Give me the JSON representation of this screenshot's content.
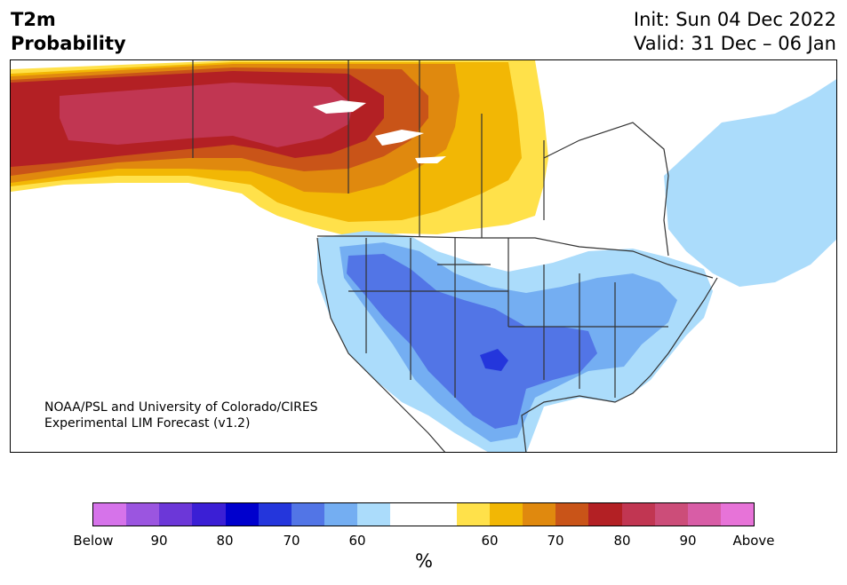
{
  "header": {
    "variable": "T2m",
    "product": "Probability",
    "init": "Init: Sun 04 Dec 2022",
    "valid": "Valid: 31 Dec – 06 Jan"
  },
  "credit": {
    "line1": "NOAA/PSL and University of Colorado/CIRES",
    "line2": "Experimental LIM Forecast (v1.2)"
  },
  "colorbar": {
    "colors": [
      "#d673ea",
      "#9b55e0",
      "#6c37d8",
      "#3b1fd5",
      "#0000cd",
      "#2436dc",
      "#5275e6",
      "#74aef2",
      "#abdcfb",
      "#ffffff",
      "#ffffff",
      "#ffe14a",
      "#f2b705",
      "#e0890e",
      "#c95418",
      "#b32024",
      "#c13652",
      "#cc4d79",
      "#d85da6",
      "#e773d8"
    ],
    "labels": [
      "Below",
      "90",
      "80",
      "70",
      "60",
      "60",
      "70",
      "80",
      "90",
      "Above"
    ],
    "unit": "%"
  },
  "legend_categories": {
    "below": "Below",
    "above": "Above"
  }
}
